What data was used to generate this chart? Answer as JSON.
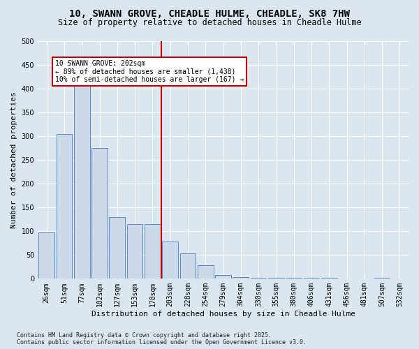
{
  "title_line1": "10, SWANN GROVE, CHEADLE HULME, CHEADLE, SK8 7HW",
  "title_line2": "Size of property relative to detached houses in Cheadle Hulme",
  "xlabel": "Distribution of detached houses by size in Cheadle Hulme",
  "ylabel": "Number of detached properties",
  "categories": [
    "26sqm",
    "51sqm",
    "77sqm",
    "102sqm",
    "127sqm",
    "153sqm",
    "178sqm",
    "203sqm",
    "228sqm",
    "254sqm",
    "279sqm",
    "304sqm",
    "330sqm",
    "355sqm",
    "380sqm",
    "406sqm",
    "431sqm",
    "456sqm",
    "481sqm",
    "507sqm",
    "532sqm"
  ],
  "values": [
    97,
    305,
    425,
    275,
    130,
    115,
    115,
    78,
    53,
    28,
    8,
    4,
    2,
    2,
    2,
    2,
    2,
    0,
    0,
    2,
    0
  ],
  "bar_color": "#ccd9e8",
  "bar_edge_color": "#5b8ac8",
  "vline_x": 6.5,
  "vline_color": "#cc0000",
  "annotation_text": "10 SWANN GROVE: 202sqm\n← 89% of detached houses are smaller (1,438)\n10% of semi-detached houses are larger (167) →",
  "annotation_box_color": "#cc0000",
  "footer_line1": "Contains HM Land Registry data © Crown copyright and database right 2025.",
  "footer_line2": "Contains public sector information licensed under the Open Government Licence v3.0.",
  "ylim": [
    0,
    500
  ],
  "yticks": [
    0,
    50,
    100,
    150,
    200,
    250,
    300,
    350,
    400,
    450,
    500
  ],
  "bg_color": "#dce6f0",
  "plot_bg_color": "#dce6f0",
  "title_fontsize": 10,
  "subtitle_fontsize": 8.5,
  "axis_label_fontsize": 8,
  "tick_fontsize": 7,
  "footer_fontsize": 6
}
